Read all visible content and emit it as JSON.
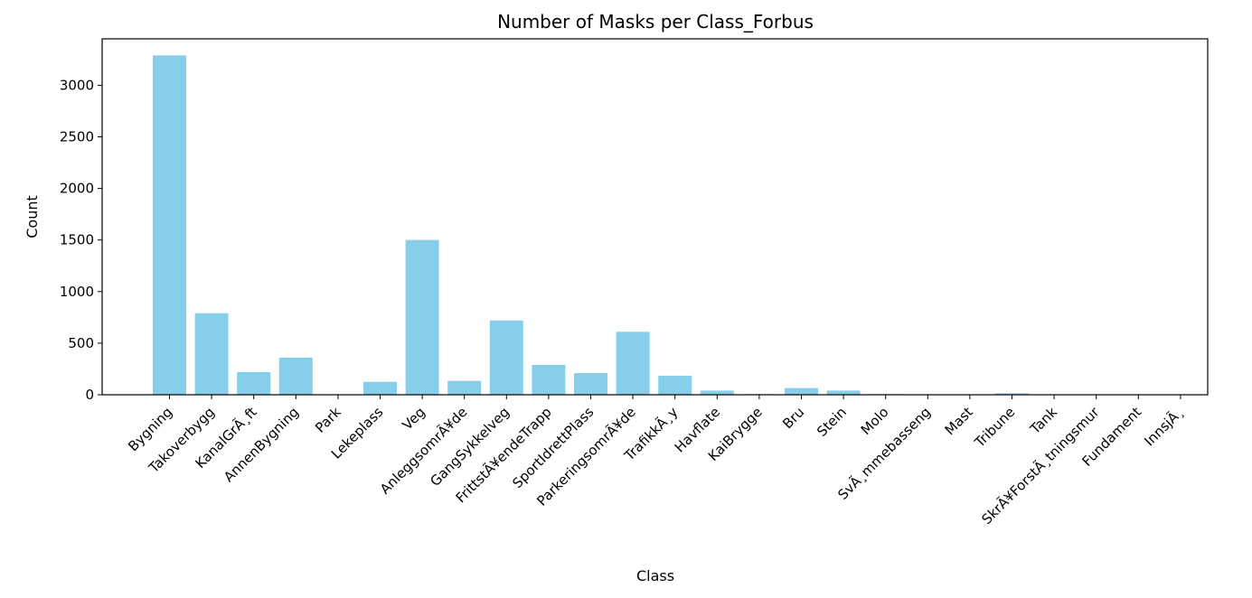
{
  "chart_data": {
    "type": "bar",
    "title": "Number of Masks per Class_Forbus",
    "xlabel": "Class",
    "ylabel": "Count",
    "ylim": [
      0,
      3450
    ],
    "yticks": [
      0,
      500,
      1000,
      1500,
      2000,
      2500,
      3000
    ],
    "grid": false,
    "bar_color": "#87ceeb",
    "categories": [
      "Bygning",
      "Takoverbygg",
      "KanalGrÃ¸ft",
      "AnnenBygning",
      "Park",
      "Lekeplass",
      "Veg",
      "AnleggsomrÃ¥de",
      "GangSykkelveg",
      "FrittstÃ¥endeTrapp",
      "SportIdrettPlass",
      "ParkeringsomrÃ¥de",
      "TrafikkÃ¸y",
      "Havflate",
      "KaiBrygge",
      "Bru",
      "Stein",
      "Molo",
      "SvÃ¸mmebasseng",
      "Mast",
      "Tribune",
      "Tank",
      "SkrÃ¥ForstÃ¸tningsmur",
      "Fundament",
      "InnsjÃ¸"
    ],
    "values": [
      3290,
      790,
      220,
      360,
      3,
      125,
      1500,
      135,
      720,
      290,
      210,
      610,
      185,
      40,
      5,
      65,
      40,
      5,
      3,
      3,
      15,
      3,
      3,
      3,
      3
    ]
  }
}
